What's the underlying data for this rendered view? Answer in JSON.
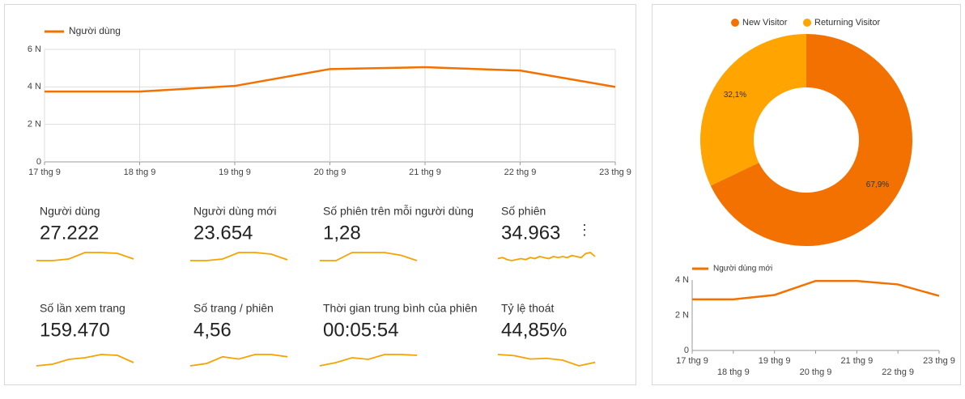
{
  "chart_data": [
    {
      "type": "line",
      "categories": [
        "17 thg 9",
        "18 thg 9",
        "19 thg 9",
        "20 thg 9",
        "21 thg 9",
        "22 thg 9",
        "23 thg 9"
      ],
      "series": [
        {
          "name": "Người dùng",
          "color": "#f27100",
          "values": [
            3750,
            3750,
            4050,
            4950,
            5050,
            4870,
            4000
          ]
        }
      ],
      "ylim": [
        0,
        6000
      ],
      "yticks": [
        0,
        {
          "value": 2000,
          "label": "2 N"
        },
        {
          "value": 4000,
          "label": "4 N"
        },
        {
          "value": 6000,
          "label": "6 N"
        }
      ],
      "grid": true
    },
    {
      "type": "donut",
      "categories": [
        "New Visitor",
        "Returning Visitor"
      ],
      "values": [
        67.9,
        32.1
      ],
      "value_labels": [
        "67,9%",
        "32,1%"
      ],
      "colors": [
        "#f27100",
        "#ffa400"
      ]
    },
    {
      "type": "line",
      "categories": [
        "17 thg 9",
        "18 thg 9",
        "19 thg 9",
        "20 thg 9",
        "21 thg 9",
        "22 thg 9",
        "23 thg 9"
      ],
      "series": [
        {
          "name": "Người dùng mới",
          "color": "#f27100",
          "values": [
            2900,
            2900,
            3150,
            3950,
            3950,
            3750,
            3100
          ]
        }
      ],
      "ylim": [
        0,
        4000
      ],
      "yticks": [
        0,
        {
          "value": 2000,
          "label": "2 N"
        },
        {
          "value": 4000,
          "label": "4 N"
        }
      ],
      "grid": false
    }
  ],
  "metrics": [
    {
      "label": "Người dùng",
      "value": "27.222",
      "trend": [
        2,
        2,
        3,
        7,
        7,
        6.5,
        3
      ]
    },
    {
      "label": "Người dùng mới",
      "value": "23.654",
      "trend": [
        2,
        2,
        3,
        7,
        7,
        6,
        2.5
      ]
    },
    {
      "label": "Số phiên trên mỗi người dùng",
      "value": "1,28",
      "trend": [
        5,
        5,
        5.3,
        5.3,
        5.3,
        5.2,
        5
      ]
    },
    {
      "label": "Số phiên",
      "value": "34.963",
      "trend": [
        4,
        5,
        3,
        2,
        3,
        4,
        3,
        5,
        4,
        6,
        5,
        4,
        6,
        5,
        6,
        5,
        7,
        6,
        5,
        9,
        10,
        6
      ]
    },
    {
      "label": "Số lần xem trang",
      "value": "159.470",
      "trend": [
        1,
        2,
        5,
        6,
        8,
        7.5,
        3
      ]
    },
    {
      "label": "Số trang / phiên",
      "value": "4,56",
      "trend": [
        3,
        4,
        7,
        6,
        8,
        8,
        7
      ]
    },
    {
      "label": "Thời gian trung bình của phiên",
      "value": "00:05:54",
      "trend": [
        1,
        3,
        6,
        5,
        8,
        8,
        7.5
      ]
    },
    {
      "label": "Tỷ lệ thoát",
      "value": "44,85%",
      "trend": [
        7,
        6.5,
        5,
        5.3,
        4.5,
        2,
        3.5
      ]
    }
  ]
}
